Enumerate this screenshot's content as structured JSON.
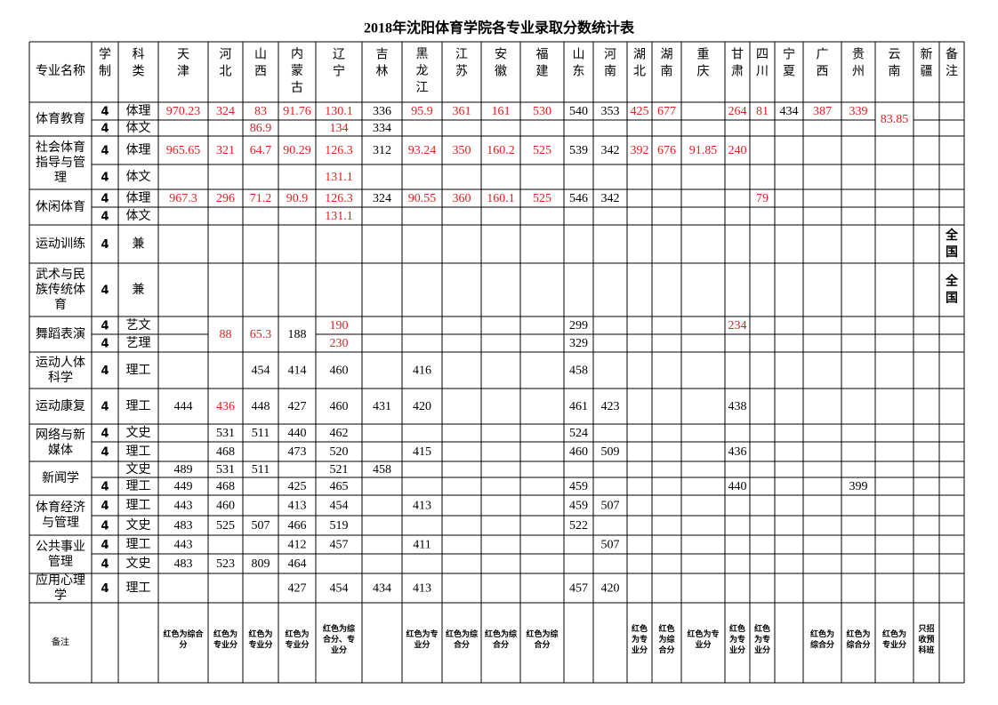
{
  "header": {
    "title": "2018年沈阳体育学院各专业录取分数统计表"
  },
  "table": {
    "columns": [
      "专业名称",
      "学制",
      "科类",
      "天津",
      "河北",
      "山西",
      "内蒙古",
      "辽宁",
      "吉林",
      "黑龙江",
      "江苏",
      "安徽",
      "福建",
      "山东",
      "河南",
      "湖北",
      "湖南",
      "重庆",
      "甘肃",
      "四川",
      "宁夏",
      "广西",
      "贵州",
      "云南",
      "新疆",
      "备注"
    ],
    "groups": [
      {
        "major": "体育教育",
        "rows": [
          {
            "length": "4",
            "category": "体理",
            "cells": {
              "0": {
                "text": "970.23",
                "color": "#e02020"
              },
              "1": {
                "text": "324",
                "color": "#e02020"
              },
              "2": {
                "text": "83",
                "color": "#e02020"
              },
              "3": {
                "text": "91.76",
                "color": "#e02020"
              },
              "4": {
                "text": "130.1",
                "color": "#e02020"
              },
              "5": {
                "text": "336"
              },
              "6": {
                "text": "95.9",
                "color": "#e02020"
              },
              "7": {
                "text": "361",
                "color": "#e02020"
              },
              "8": {
                "text": "161",
                "color": "#e02020"
              },
              "9": {
                "text": "530",
                "color": "#e02020"
              },
              "10": {
                "text": "540"
              },
              "11": {
                "text": "353"
              },
              "12": {
                "text": "425",
                "color": "#e02020"
              },
              "13": {
                "text": "677",
                "color": "#e02020"
              },
              "15": {
                "text": "264",
                "color": "#e02020"
              },
              "16": {
                "text": "81",
                "color": "#e02020"
              },
              "17": {
                "text": "434"
              },
              "18": {
                "text": "387",
                "color": "#e02020"
              },
              "19": {
                "text": "339",
                "color": "#e02020"
              },
              "20": {
                "text": "83.85",
                "color": "#e02020",
                "span": 2
              }
            }
          },
          {
            "length": "4",
            "category": "体文",
            "cells": {
              "2": {
                "text": "86.9",
                "color": "#e02020"
              },
              "4": {
                "text": "134",
                "color": "#e02020"
              },
              "5": {
                "text": "334"
              }
            }
          }
        ]
      },
      {
        "major": "社会体育指导与管理",
        "rows": [
          {
            "length": "4",
            "category": "体理",
            "cells": {
              "0": {
                "text": "965.65",
                "color": "#e02020"
              },
              "1": {
                "text": "321",
                "color": "#e02020"
              },
              "2": {
                "text": "64.7",
                "color": "#e02020"
              },
              "3": {
                "text": "90.29",
                "color": "#e02020"
              },
              "4": {
                "text": "126.3",
                "color": "#e02020"
              },
              "5": {
                "text": "312"
              },
              "6": {
                "text": "93.24",
                "color": "#e02020"
              },
              "7": {
                "text": "350",
                "color": "#e02020"
              },
              "8": {
                "text": "160.2",
                "color": "#e02020"
              },
              "9": {
                "text": "525",
                "color": "#e02020"
              },
              "10": {
                "text": "539"
              },
              "11": {
                "text": "342"
              },
              "12": {
                "text": "392",
                "color": "#e02020"
              },
              "13": {
                "text": "676",
                "color": "#e02020"
              },
              "14": {
                "text": "91.85",
                "color": "#e02020"
              },
              "15": {
                "text": "240",
                "color": "#e02020"
              }
            }
          },
          {
            "length": "4",
            "category": "体文",
            "cells": {
              "4": {
                "text": "131.1",
                "color": "#e02020"
              }
            }
          }
        ]
      },
      {
        "major": "休闲体育",
        "rows": [
          {
            "length": "4",
            "category": "体理",
            "cells": {
              "0": {
                "text": "967.3",
                "color": "#e02020"
              },
              "1": {
                "text": "296",
                "color": "#e02020"
              },
              "2": {
                "text": "71.2",
                "color": "#e02020"
              },
              "3": {
                "text": "90.9",
                "color": "#e02020"
              },
              "4": {
                "text": "126.3",
                "color": "#e02020"
              },
              "5": {
                "text": "324"
              },
              "6": {
                "text": "90.55",
                "color": "#e02020"
              },
              "7": {
                "text": "360",
                "color": "#e02020"
              },
              "8": {
                "text": "160.1",
                "color": "#e02020"
              },
              "9": {
                "text": "525",
                "color": "#e02020"
              },
              "10": {
                "text": "546"
              },
              "11": {
                "text": "342"
              },
              "16": {
                "text": "79",
                "color": "#e02020"
              }
            }
          },
          {
            "length": "4",
            "category": "体文",
            "cells": {
              "4": {
                "text": "131.1",
                "color": "#e02020"
              }
            }
          }
        ]
      },
      {
        "major": "运动训练",
        "rows": [
          {
            "length": "4",
            "category": "兼",
            "cells": {
              "22": {
                "text": "全国",
                "bold": true
              }
            }
          }
        ]
      },
      {
        "major": "武术与民族传统体育",
        "rows": [
          {
            "length": "4",
            "category": "兼",
            "cells": {
              "22": {
                "text": "全国",
                "bold": true
              }
            }
          }
        ]
      },
      {
        "major": "舞蹈表演",
        "rows": [
          {
            "length": "4",
            "category": "艺文",
            "cells": {
              "1": {
                "text": "88",
                "color": "#e02020",
                "span": 2
              },
              "2": {
                "text": "65.3",
                "color": "#e02020",
                "span": 2
              },
              "3": {
                "text": "188",
                "span": 2
              },
              "4": {
                "text": "190",
                "color": "#e02020"
              },
              "10": {
                "text": "299"
              },
              "15": {
                "text": "234",
                "color": "#e02020"
              }
            }
          },
          {
            "length": "4",
            "category": "艺理",
            "cells": {
              "4": {
                "text": "230",
                "color": "#e02020"
              },
              "10": {
                "text": "329"
              }
            }
          }
        ]
      },
      {
        "major": "运动人体科学",
        "rows": [
          {
            "length": "4",
            "category": "理工",
            "cells": {
              "2": {
                "text": "454"
              },
              "3": {
                "text": "414"
              },
              "4": {
                "text": "460"
              },
              "6": {
                "text": "416"
              },
              "10": {
                "text": "458"
              }
            }
          }
        ]
      },
      {
        "major": "运动康复",
        "rows": [
          {
            "length": "4",
            "category": "理工",
            "cells": {
              "0": {
                "text": "444"
              },
              "1": {
                "text": "436",
                "color": "#e02020"
              },
              "2": {
                "text": "448"
              },
              "3": {
                "text": "427"
              },
              "4": {
                "text": "460"
              },
              "5": {
                "text": "431"
              },
              "6": {
                "text": "420"
              },
              "10": {
                "text": "461"
              },
              "11": {
                "text": "423"
              },
              "15": {
                "text": "438"
              }
            }
          }
        ]
      },
      {
        "major": "网络与新媒体",
        "rows": [
          {
            "length": "4",
            "category": "文史",
            "cells": {
              "1": {
                "text": "531"
              },
              "2": {
                "text": "511"
              },
              "3": {
                "text": "440"
              },
              "4": {
                "text": "462"
              },
              "10": {
                "text": "524"
              }
            }
          },
          {
            "length": "4",
            "category": "理工",
            "cells": {
              "1": {
                "text": "468"
              },
              "3": {
                "text": "473"
              },
              "4": {
                "text": "520"
              },
              "6": {
                "text": "415"
              },
              "10": {
                "text": "460"
              },
              "11": {
                "text": "509"
              },
              "15": {
                "text": "436"
              }
            }
          }
        ]
      },
      {
        "major": "新闻学",
        "rows": [
          {
            "category": "文史",
            "cells": {
              "0": {
                "text": "489"
              },
              "1": {
                "text": "531"
              },
              "2": {
                "text": "511"
              },
              "4": {
                "text": "521"
              },
              "5": {
                "text": "458"
              }
            }
          },
          {
            "length": "4",
            "category": "理工",
            "cells": {
              "0": {
                "text": "449"
              },
              "1": {
                "text": "468"
              },
              "3": {
                "text": "425"
              },
              "4": {
                "text": "465"
              },
              "10": {
                "text": "459"
              },
              "15": {
                "text": "440"
              },
              "19": {
                "text": "399"
              }
            }
          }
        ]
      },
      {
        "major": "体育经济与管理",
        "rows": [
          {
            "length": "4",
            "category": "理工",
            "cells": {
              "0": {
                "text": "443"
              },
              "1": {
                "text": "460"
              },
              "3": {
                "text": "413"
              },
              "4": {
                "text": "454"
              },
              "6": {
                "text": "413"
              },
              "10": {
                "text": "459"
              },
              "11": {
                "text": "507"
              }
            }
          },
          {
            "length": "4",
            "category": "文史",
            "cells": {
              "0": {
                "text": "483"
              },
              "1": {
                "text": "525"
              },
              "2": {
                "text": "507"
              },
              "3": {
                "text": "466"
              },
              "4": {
                "text": "519"
              },
              "10": {
                "text": "522"
              }
            }
          }
        ]
      },
      {
        "major": "公共事业管理",
        "rows": [
          {
            "length": "4",
            "category": "理工",
            "cells": {
              "0": {
                "text": "443"
              },
              "3": {
                "text": "412"
              },
              "4": {
                "text": "457"
              },
              "6": {
                "text": "411"
              },
              "11": {
                "text": "507"
              }
            }
          },
          {
            "length": "4",
            "category": "文史",
            "cells": {
              "0": {
                "text": "483"
              },
              "1": {
                "text": "523"
              },
              "2": {
                "text": "809"
              },
              "3": {
                "text": "464"
              }
            }
          }
        ]
      },
      {
        "major": "应用心理学",
        "rows": [
          {
            "length": "4",
            "category": "理工",
            "cells": {
              "3": {
                "text": "427"
              },
              "4": {
                "text": "454"
              },
              "5": {
                "text": "434"
              },
              "6": {
                "text": "413"
              },
              "10": {
                "text": "457"
              },
              "11": {
                "text": "420"
              }
            }
          }
        ]
      }
    ],
    "notes": {
      "label": "备注",
      "cells": {
        "0": "红色为综合分",
        "1": "红色为专业分",
        "2": "红色为专业分",
        "3": "红色为专业分",
        "4": "红色为综合分、专业分",
        "6": "红色为专业分",
        "7": "红色为综合分",
        "8": "红色为综合分",
        "9": "红色为综合分",
        "12": "红色为专业分",
        "13": "红色为综合分",
        "14": "红色为专业分",
        "15": "红色为专业分",
        "16": "红色为专业分",
        "18": "红色为综合分",
        "19": "红色为综合分",
        "20": "红色为专业分",
        "21": "只招收预科班"
      }
    }
  }
}
